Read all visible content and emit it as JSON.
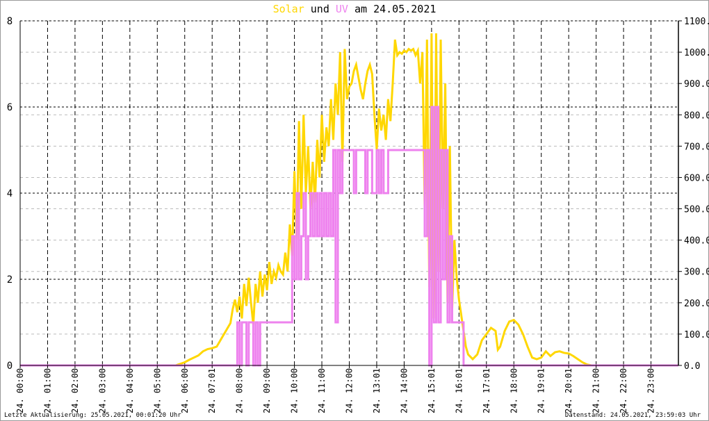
{
  "title": {
    "part1": "Solar",
    "part2": " und ",
    "part3": "UV",
    "part4": " am 24.05.2021"
  },
  "footer": {
    "last_update": "Letzte Aktualisierung: 25.05.2021, 00:01:20 Uhr",
    "data_state": "Datenstand: 24.05.2021, 23:59:03 Uhr"
  },
  "colors": {
    "solar": "#FFD700",
    "uv": "#EE82EE",
    "grid_major": "#000000",
    "grid_minor": "#BBBBBB"
  },
  "chart_data": {
    "type": "line",
    "title": "Solar und UV am 24.05.2021",
    "x_tick_labels": [
      "24. 00:00",
      "24. 01:00",
      "24. 02:00",
      "24. 03:00",
      "24. 04:00",
      "24. 05:00",
      "24. 06:00",
      "24. 07:01",
      "24. 08:00",
      "24. 09:00",
      "24. 10:00",
      "24. 11:00",
      "24. 12:00",
      "24. 13:01",
      "24. 14:00",
      "24. 15:01",
      "24. 16:01",
      "24. 17:01",
      "24. 18:00",
      "24. 19:01",
      "24. 20:01",
      "24. 21:00",
      "24. 22:00",
      "24. 23:00"
    ],
    "xlim": [
      "00:00",
      "24:00"
    ],
    "y_left": {
      "ylim": [
        0,
        8
      ],
      "ticks": [
        "0",
        "2",
        "4",
        "6",
        "8"
      ]
    },
    "y_right": {
      "ylim": [
        0,
        1100
      ],
      "ticks": [
        "0.0",
        "100.0",
        "200.0",
        "300.0",
        "400.0",
        "500.0",
        "600.0",
        "700.0",
        "800.0",
        "900.0",
        "1000.0",
        "1100.0"
      ]
    },
    "grid": true,
    "series": [
      {
        "name": "Solar",
        "axis": "right",
        "points": [
          [
            "00:00",
            0
          ],
          [
            "05:40",
            0
          ],
          [
            "05:50",
            5
          ],
          [
            "06:00",
            10
          ],
          [
            "06:10",
            18
          ],
          [
            "06:20",
            25
          ],
          [
            "06:30",
            32
          ],
          [
            "06:40",
            45
          ],
          [
            "06:50",
            52
          ],
          [
            "07:00",
            55
          ],
          [
            "07:10",
            60
          ],
          [
            "07:20",
            85
          ],
          [
            "07:30",
            110
          ],
          [
            "07:40",
            135
          ],
          [
            "07:45",
            180
          ],
          [
            "07:50",
            210
          ],
          [
            "07:55",
            170
          ],
          [
            "08:00",
            220
          ],
          [
            "08:05",
            150
          ],
          [
            "08:10",
            260
          ],
          [
            "08:15",
            190
          ],
          [
            "08:20",
            280
          ],
          [
            "08:25",
            200
          ],
          [
            "08:30",
            130
          ],
          [
            "08:35",
            260
          ],
          [
            "08:40",
            200
          ],
          [
            "08:45",
            300
          ],
          [
            "08:50",
            220
          ],
          [
            "08:55",
            290
          ],
          [
            "09:00",
            240
          ],
          [
            "09:05",
            330
          ],
          [
            "09:10",
            260
          ],
          [
            "09:15",
            300
          ],
          [
            "09:20",
            280
          ],
          [
            "09:25",
            320
          ],
          [
            "09:30",
            300
          ],
          [
            "09:35",
            290
          ],
          [
            "09:40",
            360
          ],
          [
            "09:45",
            300
          ],
          [
            "09:50",
            450
          ],
          [
            "09:55",
            350
          ],
          [
            "10:00",
            620
          ],
          [
            "10:05",
            400
          ],
          [
            "10:10",
            780
          ],
          [
            "10:15",
            500
          ],
          [
            "10:20",
            800
          ],
          [
            "10:25",
            550
          ],
          [
            "10:30",
            700
          ],
          [
            "10:35",
            500
          ],
          [
            "10:40",
            650
          ],
          [
            "10:45",
            520
          ],
          [
            "10:50",
            720
          ],
          [
            "10:55",
            600
          ],
          [
            "11:00",
            800
          ],
          [
            "11:05",
            650
          ],
          [
            "11:10",
            760
          ],
          [
            "11:15",
            700
          ],
          [
            "11:20",
            850
          ],
          [
            "11:25",
            720
          ],
          [
            "11:30",
            900
          ],
          [
            "11:35",
            800
          ],
          [
            "11:40",
            1000
          ],
          [
            "11:45",
            650
          ],
          [
            "11:50",
            1010
          ],
          [
            "11:55",
            850
          ],
          [
            "12:00",
            890
          ],
          [
            "12:05",
            900
          ],
          [
            "12:10",
            940
          ],
          [
            "12:15",
            960
          ],
          [
            "12:20",
            920
          ],
          [
            "12:25",
            880
          ],
          [
            "12:30",
            850
          ],
          [
            "12:35",
            900
          ],
          [
            "12:40",
            940
          ],
          [
            "12:45",
            960
          ],
          [
            "12:50",
            930
          ],
          [
            "12:55",
            800
          ],
          [
            "13:00",
            690
          ],
          [
            "13:05",
            820
          ],
          [
            "13:10",
            750
          ],
          [
            "13:15",
            800
          ],
          [
            "13:20",
            720
          ],
          [
            "13:25",
            850
          ],
          [
            "13:30",
            780
          ],
          [
            "13:35",
            900
          ],
          [
            "13:40",
            1040
          ],
          [
            "13:45",
            990
          ],
          [
            "13:50",
            1000
          ],
          [
            "13:55",
            995
          ],
          [
            "14:00",
            1005
          ],
          [
            "14:05",
            1000
          ],
          [
            "14:10",
            1010
          ],
          [
            "14:15",
            1005
          ],
          [
            "14:20",
            1010
          ],
          [
            "14:25",
            990
          ],
          [
            "14:30",
            1005
          ],
          [
            "14:35",
            900
          ],
          [
            "14:40",
            1000
          ],
          [
            "14:45",
            500
          ],
          [
            "14:50",
            1040
          ],
          [
            "14:55",
            250
          ],
          [
            "15:00",
            1060
          ],
          [
            "15:05",
            150
          ],
          [
            "15:10",
            1060
          ],
          [
            "15:15",
            300
          ],
          [
            "15:20",
            1040
          ],
          [
            "15:25",
            500
          ],
          [
            "15:30",
            900
          ],
          [
            "15:35",
            200
          ],
          [
            "15:40",
            700
          ],
          [
            "15:45",
            180
          ],
          [
            "15:50",
            400
          ],
          [
            "15:55",
            280
          ],
          [
            "16:00",
            210
          ],
          [
            "16:05",
            160
          ],
          [
            "16:10",
            110
          ],
          [
            "16:15",
            60
          ],
          [
            "16:20",
            35
          ],
          [
            "16:30",
            20
          ],
          [
            "16:40",
            35
          ],
          [
            "16:50",
            80
          ],
          [
            "17:00",
            100
          ],
          [
            "17:10",
            120
          ],
          [
            "17:20",
            110
          ],
          [
            "17:25",
            50
          ],
          [
            "17:30",
            60
          ],
          [
            "17:40",
            110
          ],
          [
            "17:50",
            140
          ],
          [
            "18:00",
            145
          ],
          [
            "18:10",
            130
          ],
          [
            "18:20",
            100
          ],
          [
            "18:30",
            60
          ],
          [
            "18:40",
            25
          ],
          [
            "18:50",
            20
          ],
          [
            "19:00",
            25
          ],
          [
            "19:10",
            45
          ],
          [
            "19:20",
            30
          ],
          [
            "19:30",
            42
          ],
          [
            "19:40",
            45
          ],
          [
            "19:50",
            40
          ],
          [
            "20:00",
            38
          ],
          [
            "20:10",
            30
          ],
          [
            "20:20",
            20
          ],
          [
            "20:30",
            10
          ],
          [
            "20:40",
            3
          ],
          [
            "20:50",
            0
          ],
          [
            "23:59",
            0
          ]
        ]
      },
      {
        "name": "UV",
        "axis": "left",
        "points": [
          [
            "00:00",
            0
          ],
          [
            "07:55",
            1
          ],
          [
            "08:00",
            0
          ],
          [
            "08:05",
            1
          ],
          [
            "08:15",
            0
          ],
          [
            "08:20",
            1
          ],
          [
            "08:30",
            0
          ],
          [
            "08:35",
            1
          ],
          [
            "08:40",
            0
          ],
          [
            "08:45",
            1
          ],
          [
            "09:55",
            3
          ],
          [
            "10:00",
            2
          ],
          [
            "10:05",
            4
          ],
          [
            "10:10",
            2
          ],
          [
            "10:15",
            3
          ],
          [
            "10:20",
            4
          ],
          [
            "10:25",
            2
          ],
          [
            "10:30",
            3
          ],
          [
            "10:35",
            4
          ],
          [
            "10:40",
            3
          ],
          [
            "10:45",
            4
          ],
          [
            "10:50",
            3
          ],
          [
            "10:55",
            4
          ],
          [
            "11:00",
            3
          ],
          [
            "11:05",
            4
          ],
          [
            "11:10",
            3
          ],
          [
            "11:15",
            4
          ],
          [
            "11:20",
            3
          ],
          [
            "11:25",
            5
          ],
          [
            "11:30",
            1
          ],
          [
            "11:35",
            5
          ],
          [
            "11:40",
            4
          ],
          [
            "11:45",
            5
          ],
          [
            "12:10",
            4
          ],
          [
            "12:15",
            5
          ],
          [
            "12:35",
            4
          ],
          [
            "12:40",
            5
          ],
          [
            "12:50",
            4
          ],
          [
            "13:00",
            5
          ],
          [
            "13:05",
            4
          ],
          [
            "13:10",
            5
          ],
          [
            "13:15",
            4
          ],
          [
            "13:25",
            5
          ],
          [
            "14:45",
            3
          ],
          [
            "14:50",
            5
          ],
          [
            "14:55",
            0
          ],
          [
            "15:00",
            6
          ],
          [
            "15:05",
            1
          ],
          [
            "15:10",
            6
          ],
          [
            "15:15",
            1
          ],
          [
            "15:20",
            5
          ],
          [
            "15:25",
            2
          ],
          [
            "15:30",
            5
          ],
          [
            "15:35",
            1
          ],
          [
            "15:40",
            3
          ],
          [
            "15:45",
            1
          ],
          [
            "16:10",
            0
          ],
          [
            "23:59",
            0
          ]
        ]
      }
    ]
  }
}
